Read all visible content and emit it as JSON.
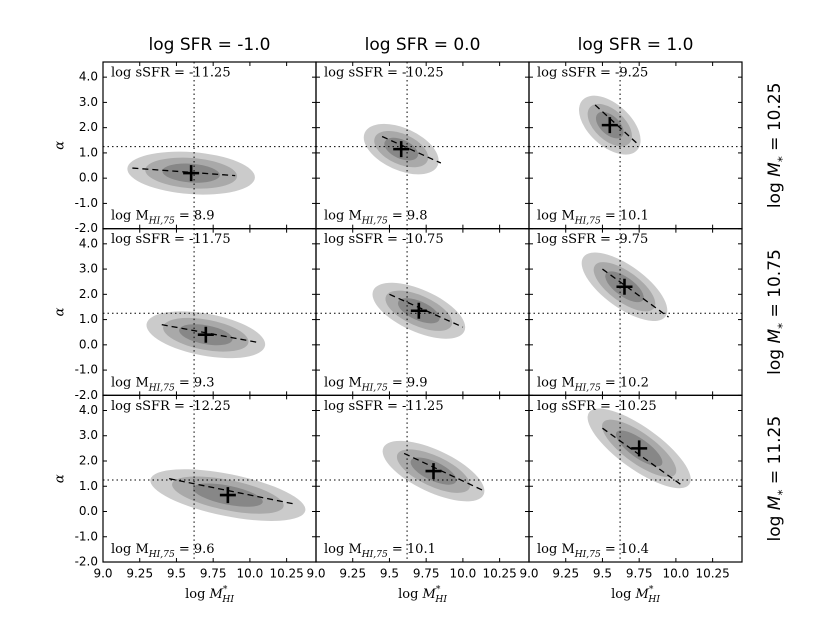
{
  "chart_data": {
    "type": "contour",
    "columns": [
      "log SFR = -1.0",
      "log SFR = 0.0",
      "log SFR = 1.0"
    ],
    "rows": [
      [
        "log ",
        "M",
        "*",
        " = 10.25"
      ],
      [
        "log ",
        "M",
        "*",
        " = 10.75"
      ],
      [
        "log ",
        "M",
        "*",
        " = 11.25"
      ]
    ],
    "xlabel": [
      "log ",
      "M",
      "*",
      "HI"
    ],
    "ylabel": "α",
    "xlim": [
      9.0,
      10.45
    ],
    "ylim": [
      -2.0,
      4.6
    ],
    "xticks": [
      {
        "value": 9,
        "label": "9.0"
      },
      9.25,
      9.5,
      9.75,
      {
        "value": 10,
        "label": "10.0"
      },
      10.25
    ],
    "yticks": [
      {
        "value": -2,
        "label": "-2.0"
      },
      {
        "value": -1,
        "label": "-1.0"
      },
      {
        "value": 0,
        "label": "0.0"
      },
      {
        "value": 1,
        "label": "1.0"
      },
      {
        "value": 2,
        "label": "2.0"
      },
      {
        "value": 3,
        "label": "3.0"
      },
      {
        "value": 4,
        "label": "4.0"
      }
    ],
    "ref_x": 9.62,
    "ref_y": 1.25,
    "colors": [
      "#cbcbcb",
      "#a9a9a9",
      "#878787"
    ],
    "panels": [
      {
        "ssfr": "log sSFR = -11.25",
        "mhi": [
          "log M",
          "HI,75",
          " = 8.9"
        ],
        "peak": [
          9.6,
          0.2
        ],
        "fit_x": [
          9.2,
          9.9
        ],
        "fit_y": [
          0.4,
          0.1
        ]
      },
      {
        "ssfr": "log sSFR = -10.25",
        "mhi": [
          "log M",
          "HI,75",
          " = 9.8"
        ],
        "peak": [
          9.58,
          1.15
        ],
        "fit_x": [
          9.45,
          9.85
        ],
        "fit_y": [
          1.65,
          0.6
        ]
      },
      {
        "ssfr": "log sSFR = -9.25",
        "mhi": [
          "log M",
          "HI,75",
          " = 10.1"
        ],
        "peak": [
          9.55,
          2.1
        ],
        "fit_x": [
          9.45,
          9.75
        ],
        "fit_y": [
          2.9,
          1.3
        ]
      },
      {
        "ssfr": "log sSFR = -11.75",
        "mhi": [
          "log M",
          "HI,75",
          " = 9.3"
        ],
        "peak": [
          9.7,
          0.4
        ],
        "fit_x": [
          9.4,
          10.05
        ],
        "fit_y": [
          0.8,
          0.1
        ]
      },
      {
        "ssfr": "log sSFR = -10.75",
        "mhi": [
          "log M",
          "HI,75",
          " = 9.9"
        ],
        "peak": [
          9.7,
          1.35
        ],
        "fit_x": [
          9.5,
          10.0
        ],
        "fit_y": [
          2.0,
          0.7
        ]
      },
      {
        "ssfr": "log sSFR = -9.75",
        "mhi": [
          "log M",
          "HI,75",
          " = 10.2"
        ],
        "peak": [
          9.65,
          2.3
        ],
        "fit_x": [
          9.5,
          9.95
        ],
        "fit_y": [
          3.0,
          1.1
        ]
      },
      {
        "ssfr": "log sSFR = -12.25",
        "mhi": [
          "log M",
          "HI,75",
          " = 9.6"
        ],
        "peak": [
          9.85,
          0.65
        ],
        "fit_x": [
          9.45,
          10.3
        ],
        "fit_y": [
          1.3,
          0.3
        ]
      },
      {
        "ssfr": "log sSFR = -11.25",
        "mhi": [
          "log M",
          "HI,75",
          " = 10.1"
        ],
        "peak": [
          9.8,
          1.6
        ],
        "fit_x": [
          9.6,
          10.15
        ],
        "fit_y": [
          2.3,
          0.8
        ]
      },
      {
        "ssfr": "log sSFR = -10.25",
        "mhi": [
          "log M",
          "HI,75",
          " = 10.4"
        ],
        "peak": [
          9.75,
          2.5
        ],
        "fit_x": [
          9.5,
          10.05
        ],
        "fit_y": [
          3.3,
          1.0
        ]
      }
    ]
  }
}
